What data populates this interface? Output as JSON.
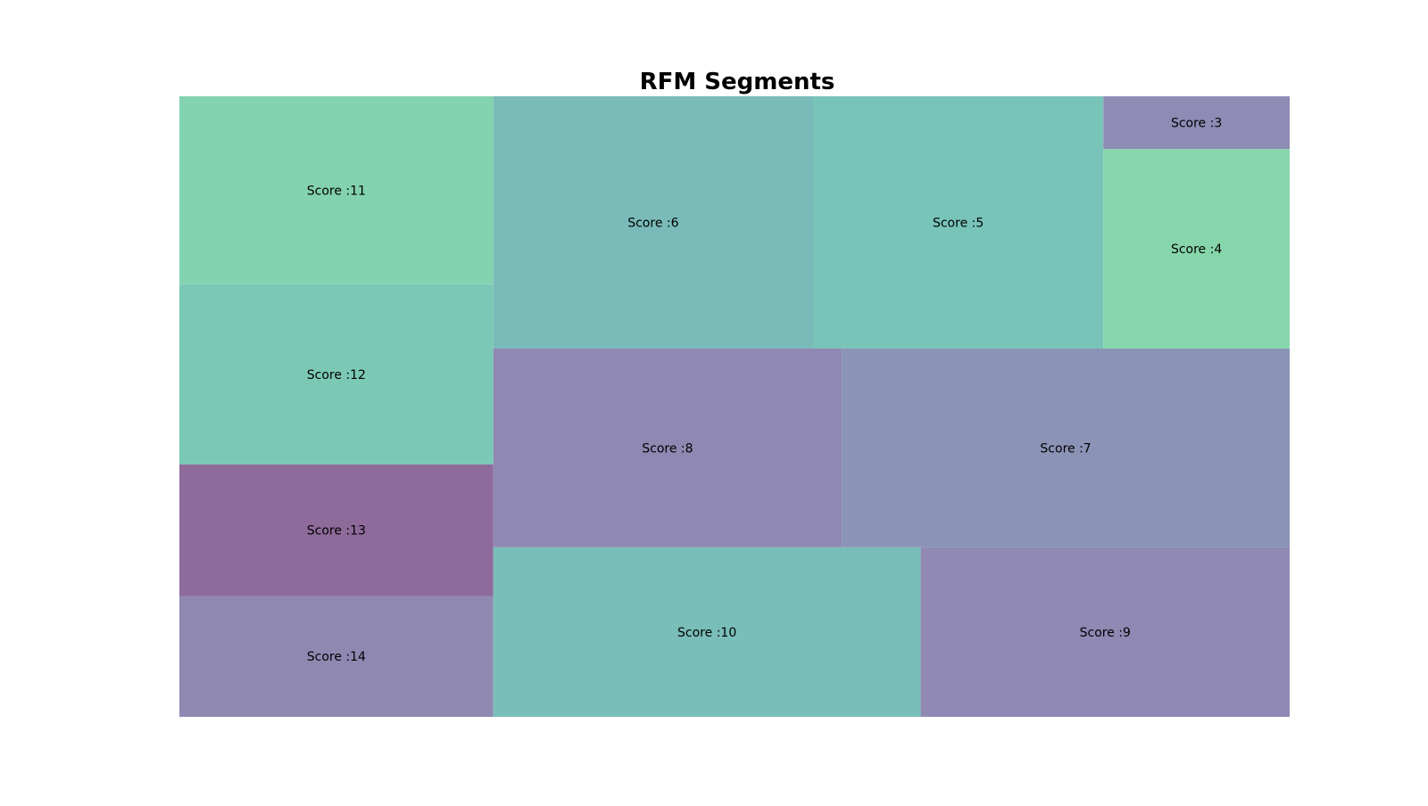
{
  "chart_data": {
    "type": "treemap",
    "title": "RFM Segments",
    "label_prefix": "Score :",
    "cells": [
      {
        "label": "Score :11",
        "score": 11,
        "value": 2.075,
        "color": "#83d2b0"
      },
      {
        "label": "Score :12",
        "score": 12,
        "value": 1.989,
        "color": "#7bc9b5"
      },
      {
        "label": "Score :13",
        "score": 13,
        "value": 1.452,
        "color": "#8f6b9b"
      },
      {
        "label": "Score :14",
        "score": 14,
        "value": 1.334,
        "color": "#8f89b2"
      },
      {
        "label": "Score :6",
        "score": 6,
        "value": 2.837,
        "color": "#7abbb9"
      },
      {
        "label": "Score :5",
        "score": 5,
        "value": 2.575,
        "color": "#78c4b9"
      },
      {
        "label": "Score :3",
        "score": 3,
        "value": 0.346,
        "color": "#8e8cb5"
      },
      {
        "label": "Score :4",
        "score": 4,
        "value": 1.307,
        "color": "#87d6ab"
      },
      {
        "label": "Score :8",
        "score": 8,
        "value": 2.435,
        "color": "#8f88b2"
      },
      {
        "label": "Score :7",
        "score": 7,
        "value": 3.13,
        "color": "#8b93b6"
      },
      {
        "label": "Score :10",
        "score": 10,
        "value": 2.548,
        "color": "#7abeb9"
      },
      {
        "label": "Score :9",
        "score": 9,
        "value": 2.2,
        "color": "#8f89b4"
      }
    ]
  }
}
